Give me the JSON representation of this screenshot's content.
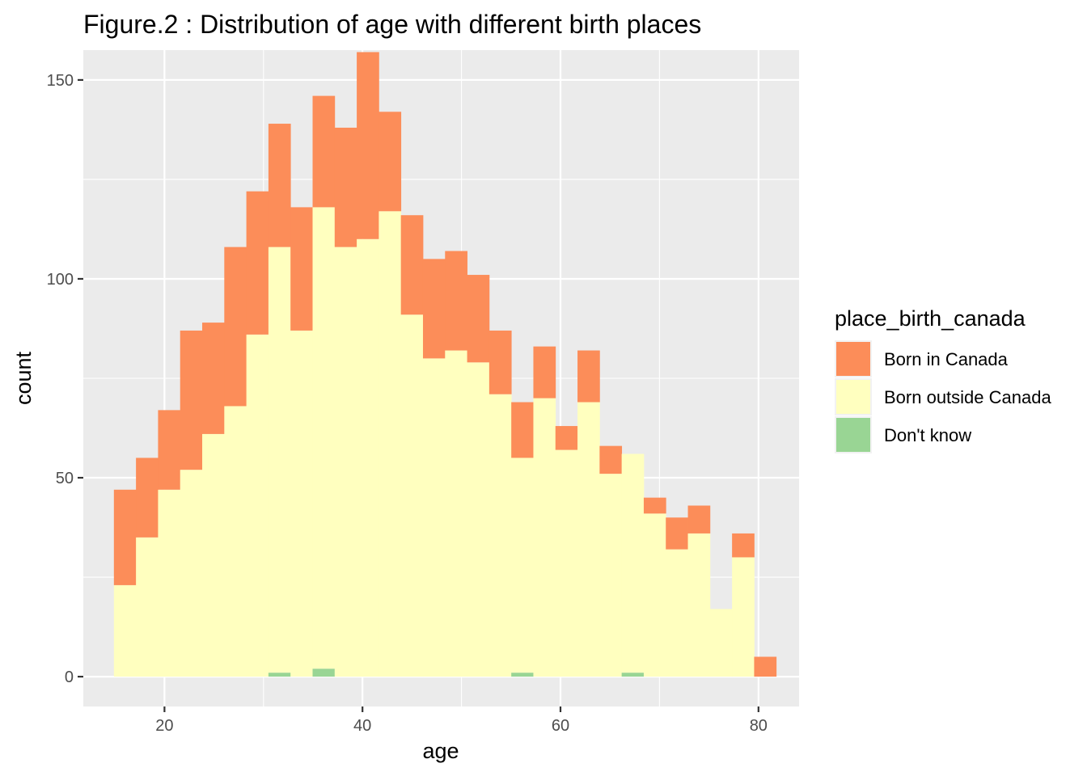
{
  "chart_data": {
    "type": "bar",
    "subtype": "stacked-histogram",
    "title": "Figure.2 : Distribution of age with different birth places",
    "xlabel": "age",
    "ylabel": "count",
    "xlim": [
      11.8,
      84.1
    ],
    "ylim": [
      -7.5,
      157.5
    ],
    "xticks": [
      20,
      40,
      60,
      80
    ],
    "yticks": [
      0,
      50,
      100,
      150
    ],
    "grid": true,
    "panel_background": "#ebebeb",
    "grid_color": "#ffffff",
    "legend": {
      "title": "place_birth_canada",
      "position": "right",
      "entries": [
        "Born in Canada",
        "Born outside Canada",
        "Don't know"
      ]
    },
    "bins": {
      "x_start": 14.89,
      "bin_width": 2.23,
      "count": 30
    },
    "series": [
      {
        "name": "Born in Canada",
        "color": "#fc8d59",
        "values": [
          24,
          20,
          20,
          35,
          28,
          40,
          36,
          31,
          31,
          28,
          30,
          47,
          25,
          25,
          25,
          25,
          22,
          16,
          14,
          13,
          6,
          13,
          7,
          0,
          4,
          8,
          7,
          0,
          6,
          5
        ]
      },
      {
        "name": "Born outside Canada",
        "color": "#ffffbf",
        "values": [
          23,
          35,
          47,
          52,
          61,
          68,
          86,
          107,
          87,
          116,
          108,
          110,
          117,
          91,
          80,
          82,
          79,
          71,
          54,
          70,
          57,
          69,
          51,
          55,
          41,
          32,
          36,
          17,
          30,
          0
        ]
      },
      {
        "name": "Don't know",
        "color": "#99d594",
        "values": [
          0,
          0,
          0,
          0,
          0,
          0,
          0,
          1,
          0,
          2,
          0,
          0,
          0,
          0,
          0,
          0,
          0,
          0,
          1,
          0,
          0,
          0,
          0,
          1,
          0,
          0,
          0,
          0,
          0,
          0
        ]
      }
    ]
  }
}
